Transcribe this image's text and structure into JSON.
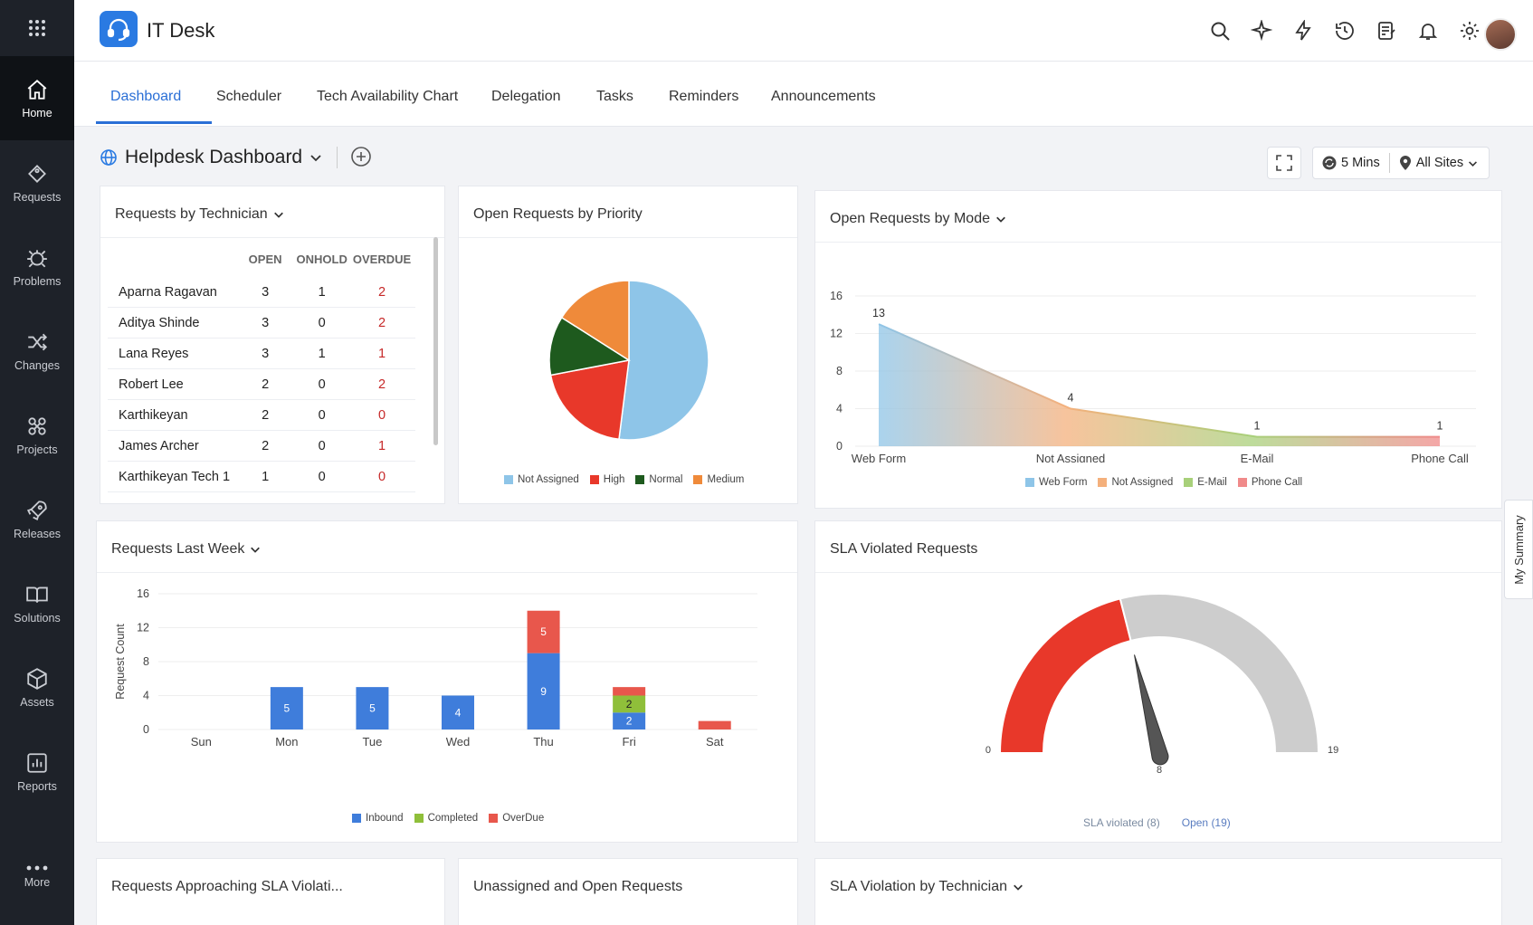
{
  "sidebar": {
    "apps_icon": "apps-grid-icon",
    "items": [
      {
        "label": "Home",
        "icon": "home-icon"
      },
      {
        "label": "Requests",
        "icon": "ticket-icon"
      },
      {
        "label": "Problems",
        "icon": "bug-icon"
      },
      {
        "label": "Changes",
        "icon": "shuffle-icon"
      },
      {
        "label": "Projects",
        "icon": "projects-icon"
      },
      {
        "label": "Releases",
        "icon": "rocket-icon"
      },
      {
        "label": "Solutions",
        "icon": "book-icon"
      },
      {
        "label": "Assets",
        "icon": "cube-icon"
      },
      {
        "label": "Reports",
        "icon": "chart-icon"
      }
    ],
    "more_label": "More"
  },
  "header": {
    "title": "IT Desk",
    "icons": [
      "search-icon",
      "magic-icon",
      "lightning-icon",
      "history-icon",
      "notes-icon",
      "bell-icon",
      "gear-icon"
    ]
  },
  "tabs": [
    "Dashboard",
    "Scheduler",
    "Tech Availability Chart",
    "Delegation",
    "Tasks",
    "Reminders",
    "Announcements"
  ],
  "dashboard": {
    "title": "Helpdesk Dashboard",
    "refresh_label": "5 Mins",
    "sites_label": "All Sites"
  },
  "panels": {
    "technician": {
      "title": "Requests by Technician",
      "columns": [
        "OPEN",
        "ONHOLD",
        "OVERDUE"
      ],
      "rows": [
        {
          "name": "Aparna Ragavan",
          "open": "3",
          "onhold": "1",
          "overdue": "2"
        },
        {
          "name": "Aditya Shinde",
          "open": "3",
          "onhold": "0",
          "overdue": "2"
        },
        {
          "name": "Lana Reyes",
          "open": "3",
          "onhold": "1",
          "overdue": "1"
        },
        {
          "name": "Robert Lee",
          "open": "2",
          "onhold": "0",
          "overdue": "2"
        },
        {
          "name": "Karthikeyan",
          "open": "2",
          "onhold": "0",
          "overdue": "0"
        },
        {
          "name": "James Archer",
          "open": "2",
          "onhold": "0",
          "overdue": "1"
        },
        {
          "name": "Karthikeyan Tech 1",
          "open": "1",
          "onhold": "0",
          "overdue": "0"
        }
      ]
    },
    "priority": {
      "title": "Open Requests by Priority"
    },
    "mode": {
      "title": "Open Requests by Mode"
    },
    "last_week": {
      "title": "Requests Last Week",
      "ylabel": "Request Count"
    },
    "sla": {
      "title": "SLA Violated Requests",
      "legend_violated": "SLA violated",
      "violated_count": "(8)",
      "legend_open": "Open",
      "open_count": "(19)"
    },
    "approaching": {
      "title": "Requests Approaching SLA Violati..."
    },
    "unassigned": {
      "title": "Unassigned and Open Requests"
    },
    "sla_tech": {
      "title": "SLA Violation by Technician"
    }
  },
  "my_summary": "My Summary",
  "chart_data": [
    {
      "type": "pie",
      "title": "Open Requests by Priority",
      "categories": [
        "Not Assigned",
        "High",
        "Normal",
        "Medium"
      ],
      "values": [
        13,
        5,
        3,
        4
      ],
      "colors": [
        "#8ec5e8",
        "#e8382a",
        "#1e5a1e",
        "#ef8a3a"
      ]
    },
    {
      "type": "area",
      "title": "Open Requests by Mode",
      "categories": [
        "Web Form",
        "Not Assigned",
        "E-Mail",
        "Phone Call"
      ],
      "values": [
        13,
        4,
        1,
        1
      ],
      "yticks": [
        0,
        4,
        8,
        12,
        16
      ],
      "ylim": [
        0,
        16
      ],
      "colors": [
        "#8ec5e8",
        "#f4b07c",
        "#a8d07a",
        "#f08a8a"
      ]
    },
    {
      "type": "bar",
      "title": "Requests Last Week",
      "ylabel": "Request Count",
      "categories": [
        "Sun",
        "Mon",
        "Tue",
        "Wed",
        "Thu",
        "Fri",
        "Sat"
      ],
      "yticks": [
        0,
        4,
        8,
        12,
        16
      ],
      "ylim": [
        0,
        16
      ],
      "series": [
        {
          "name": "Inbound",
          "color": "#3f7ddb",
          "values": [
            0,
            5,
            5,
            4,
            9,
            2,
            0
          ]
        },
        {
          "name": "Completed",
          "color": "#8fbf3a",
          "values": [
            0,
            0,
            0,
            0,
            0,
            2,
            0
          ]
        },
        {
          "name": "OverDue",
          "color": "#e8574c",
          "values": [
            0,
            0,
            0,
            0,
            5,
            1,
            1
          ]
        }
      ]
    },
    {
      "type": "gauge",
      "title": "SLA Violated Requests",
      "min": 0,
      "max": 19,
      "value": 8,
      "min_label": "0",
      "max_label": "19",
      "value_label": "8",
      "colors": [
        "#e8382a",
        "#cdcdcd"
      ]
    }
  ]
}
